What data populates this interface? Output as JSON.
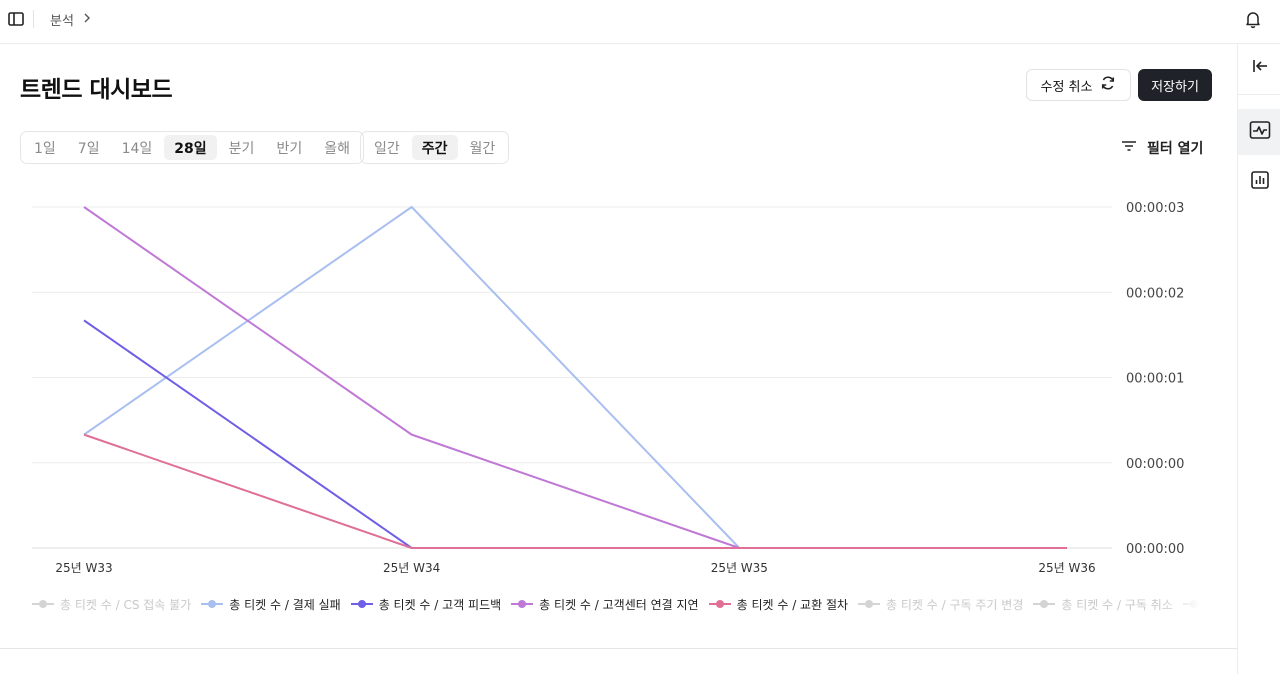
{
  "breadcrumb": {
    "section": "분석"
  },
  "page": {
    "title": "트렌드 대시보드"
  },
  "actions": {
    "cancel_label": "수정 취소",
    "save_label": "저장하기"
  },
  "range_tabs": [
    {
      "label": "1일",
      "active": false
    },
    {
      "label": "7일",
      "active": false
    },
    {
      "label": "14일",
      "active": false
    },
    {
      "label": "28일",
      "active": true
    },
    {
      "label": "분기",
      "active": false
    },
    {
      "label": "반기",
      "active": false
    },
    {
      "label": "올해",
      "active": false
    }
  ],
  "period_tabs": [
    {
      "label": "일간",
      "active": false
    },
    {
      "label": "주간",
      "active": true
    },
    {
      "label": "월간",
      "active": false
    }
  ],
  "filter": {
    "label": "필터 열기"
  },
  "icons": {
    "sidebar_toggle": "sidebar-toggle-icon",
    "breadcrumb_chevron": "chevron-right-icon",
    "bell": "bell-icon",
    "refresh": "refresh-icon",
    "filter": "filter-icon",
    "collapse": "collapse-panel-icon",
    "trend_chart": "trend-chart-icon",
    "bar_chart": "bar-chart-icon"
  },
  "colors": {
    "save_button": "#1f2329",
    "dim_series": "#d4d4d4"
  },
  "chart_data": {
    "type": "line",
    "categories": [
      "25년 W33",
      "25년 W34",
      "25년 W35",
      "25년 W36"
    ],
    "y_tick_labels": [
      "00:00:00",
      "00:00:00",
      "00:00:01",
      "00:00:02",
      "00:00:03"
    ],
    "y_tick_values": [
      0,
      1,
      2,
      3,
      4
    ],
    "ylim": [
      0,
      4
    ],
    "grid": true,
    "y_axis_position": "right",
    "legend_position": "bottom",
    "series": [
      {
        "name": "총 티켓 수 / CS 접속 불가",
        "color": "#d4d4d4",
        "visible": false,
        "values": [
          null,
          null,
          null,
          null
        ]
      },
      {
        "name": "총 티켓 수 / 결제 실패",
        "color": "#a9bff0",
        "visible": true,
        "values": [
          1.33,
          4,
          0,
          null
        ]
      },
      {
        "name": "총 티켓 수 / 고객 피드백",
        "color": "#6f5ee6",
        "visible": true,
        "values": [
          2.67,
          0,
          null,
          null
        ]
      },
      {
        "name": "총 티켓 수 / 고객센터 연결 지연",
        "color": "#c078d6",
        "visible": true,
        "values": [
          4,
          1.33,
          0,
          0
        ]
      },
      {
        "name": "총 티켓 수 / 교환 절차",
        "color": "#df6f97",
        "visible": true,
        "values": [
          1.33,
          0,
          0,
          0
        ]
      },
      {
        "name": "총 티켓 수 / 구독 주기 변경",
        "color": "#d4d4d4",
        "visible": false,
        "values": [
          null,
          null,
          null,
          null
        ]
      },
      {
        "name": "총 티켓 수 / 구독 취소",
        "color": "#d4d4d4",
        "visible": false,
        "values": [
          null,
          null,
          null,
          null
        ]
      },
      {
        "name": "총 티",
        "color": "#d4d4d4",
        "visible": false,
        "values": [
          null,
          null,
          null,
          null
        ]
      }
    ]
  }
}
